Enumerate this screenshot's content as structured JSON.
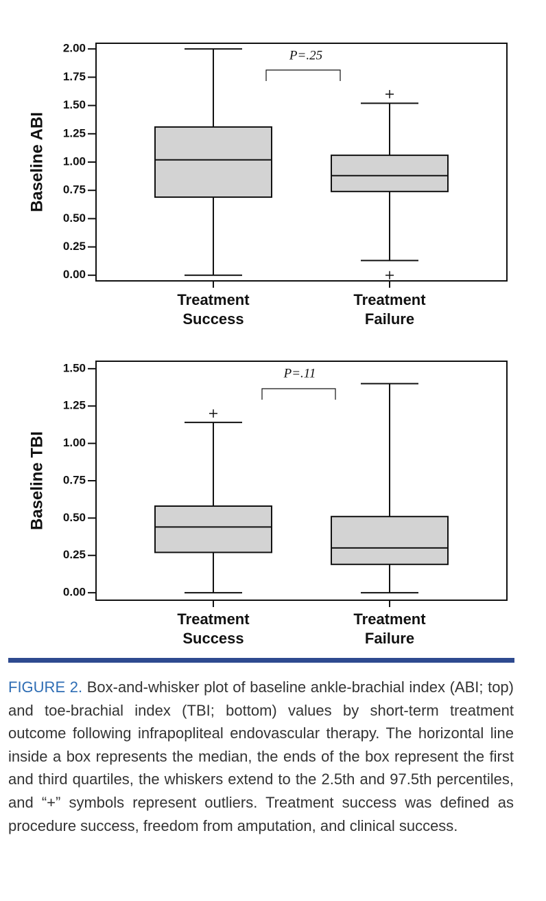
{
  "chart_data": [
    {
      "type": "box",
      "ylabel": "Baseline ABI",
      "annotation": "P=.25",
      "categories": [
        "Treatment Success",
        "Treatment Failure"
      ],
      "boxes": [
        {
          "whisker_low": 0.0,
          "q1": 0.69,
          "median": 1.02,
          "q3": 1.31,
          "whisker_high": 2.0,
          "outliers": []
        },
        {
          "whisker_low": 0.13,
          "q1": 0.74,
          "median": 0.88,
          "q3": 1.06,
          "whisker_high": 1.52,
          "outliers": [
            1.6,
            0.0
          ]
        }
      ],
      "color": "#d3d3d3",
      "ylim": [
        -0.05,
        2.05
      ],
      "yticks": [
        {
          "value": 0,
          "label": "0.00"
        },
        {
          "value": 0.25,
          "label": "0.25"
        },
        {
          "value": 0.5,
          "label": "0.50"
        },
        {
          "value": 0.75,
          "label": "0.75"
        },
        {
          "value": 1,
          "label": "1.00"
        },
        {
          "value": 1.25,
          "label": "1.25"
        },
        {
          "value": 1.5,
          "label": "1.50"
        },
        {
          "value": 1.75,
          "label": "1.75"
        },
        {
          "value": 2,
          "label": "2.00"
        }
      ]
    },
    {
      "type": "box",
      "ylabel": "Baseline TBI",
      "annotation": "P=.11",
      "categories": [
        "Treatment Success",
        "Treatment Failure"
      ],
      "boxes": [
        {
          "whisker_low": 0.0,
          "q1": 0.27,
          "median": 0.44,
          "q3": 0.58,
          "whisker_high": 1.14,
          "outliers": [
            1.2
          ]
        },
        {
          "whisker_low": 0.0,
          "q1": 0.19,
          "median": 0.3,
          "q3": 0.51,
          "whisker_high": 1.4,
          "outliers": []
        }
      ],
      "color": "#d3d3d3",
      "ylim": [
        -0.05,
        1.55
      ],
      "yticks": [
        {
          "value": 0,
          "label": "0.00"
        },
        {
          "value": 0.25,
          "label": "0.25"
        },
        {
          "value": 0.5,
          "label": "0.50"
        },
        {
          "value": 0.75,
          "label": "0.75"
        },
        {
          "value": 1,
          "label": "1.00"
        },
        {
          "value": 1.25,
          "label": "1.25"
        },
        {
          "value": 1.5,
          "label": "1.50"
        }
      ]
    }
  ],
  "caption": {
    "label": "FIGURE 2.",
    "text": "Box-and-whisker plot of baseline ankle-brachial index (ABI; top) and toe-brachial index (TBI; bottom) values by short-term treatment outcome following infrapopliteal endovascular therapy. The horizontal line inside a box represents the median, the ends of the box represent the first and third quartiles, the whiskers extend to the 2.5th and 97.5th percentiles, and “+” symbols represent outliers. Treatment success was defined as procedure success, freedom from amputation, and clinical success."
  }
}
